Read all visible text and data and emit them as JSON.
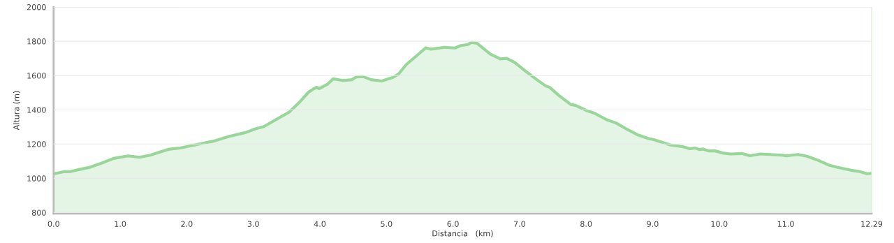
{
  "chart_data": {
    "type": "area",
    "xlabel": "Distancia   (km)",
    "ylabel": "Altura (m)",
    "x": [
      0,
      0.16,
      0.26,
      0.39,
      0.53,
      0.71,
      0.9,
      1.12,
      1.29,
      1.45,
      1.72,
      1.9,
      2.15,
      2.39,
      2.64,
      2.89,
      3.03,
      3.16,
      3.3,
      3.54,
      3.7,
      3.83,
      3.91,
      3.95,
      3.99,
      4.11,
      4.2,
      4.34,
      4.48,
      4.55,
      4.65,
      4.77,
      4.93,
      5.1,
      5.18,
      5.3,
      5.47,
      5.59,
      5.67,
      5.87,
      6.03,
      6.11,
      6.22,
      6.28,
      6.36,
      6.56,
      6.71,
      6.81,
      6.93,
      7.08,
      7.26,
      7.39,
      7.45,
      7.59,
      7.77,
      7.84,
      8.0,
      8.12,
      8.31,
      8.45,
      8.62,
      8.78,
      8.94,
      9.02,
      9.27,
      9.45,
      9.56,
      9.64,
      9.7,
      9.76,
      9.84,
      9.93,
      10.05,
      10.17,
      10.34,
      10.46,
      10.62,
      10.95,
      11.01,
      11.18,
      11.32,
      11.48,
      11.65,
      11.77,
      11.98,
      12.1,
      12.22,
      12.29
    ],
    "series": [
      {
        "color": "#99d699",
        "values": [
          1026,
          1039,
          1040,
          1052,
          1063,
          1087,
          1116,
          1131,
          1123,
          1135,
          1169,
          1177,
          1197,
          1216,
          1245,
          1268,
          1289,
          1302,
          1334,
          1387,
          1447,
          1503,
          1523,
          1532,
          1524,
          1548,
          1581,
          1571,
          1576,
          1592,
          1594,
          1576,
          1568,
          1590,
          1608,
          1665,
          1721,
          1762,
          1754,
          1765,
          1761,
          1774,
          1781,
          1794,
          1789,
          1726,
          1697,
          1700,
          1676,
          1629,
          1576,
          1540,
          1532,
          1484,
          1431,
          1426,
          1397,
          1381,
          1342,
          1323,
          1285,
          1253,
          1232,
          1226,
          1194,
          1185,
          1173,
          1177,
          1168,
          1171,
          1160,
          1161,
          1148,
          1142,
          1145,
          1132,
          1142,
          1135,
          1131,
          1139,
          1129,
          1106,
          1077,
          1065,
          1047,
          1040,
          1027,
          1029
        ]
      }
    ],
    "xlim": [
      0,
      12.29
    ],
    "xticks": [
      {
        "value": 0,
        "label": "0.0"
      },
      {
        "value": 1,
        "label": "1.0"
      },
      {
        "value": 2,
        "label": "2.0"
      },
      {
        "value": 3,
        "label": "3.0"
      },
      {
        "value": 4,
        "label": "4.0"
      },
      {
        "value": 5,
        "label": "5.0"
      },
      {
        "value": 6,
        "label": "6.0"
      },
      {
        "value": 7,
        "label": "7.0"
      },
      {
        "value": 8,
        "label": "8.0"
      },
      {
        "value": 9,
        "label": "9.0"
      },
      {
        "value": 10,
        "label": "10.0"
      },
      {
        "value": 11,
        "label": "11.0"
      },
      12.29
    ],
    "ylim": [
      794,
      2000
    ],
    "yticks": [
      800,
      1000,
      1200,
      1400,
      1600,
      1800,
      2000
    ],
    "grid": "y",
    "legend": false
  }
}
